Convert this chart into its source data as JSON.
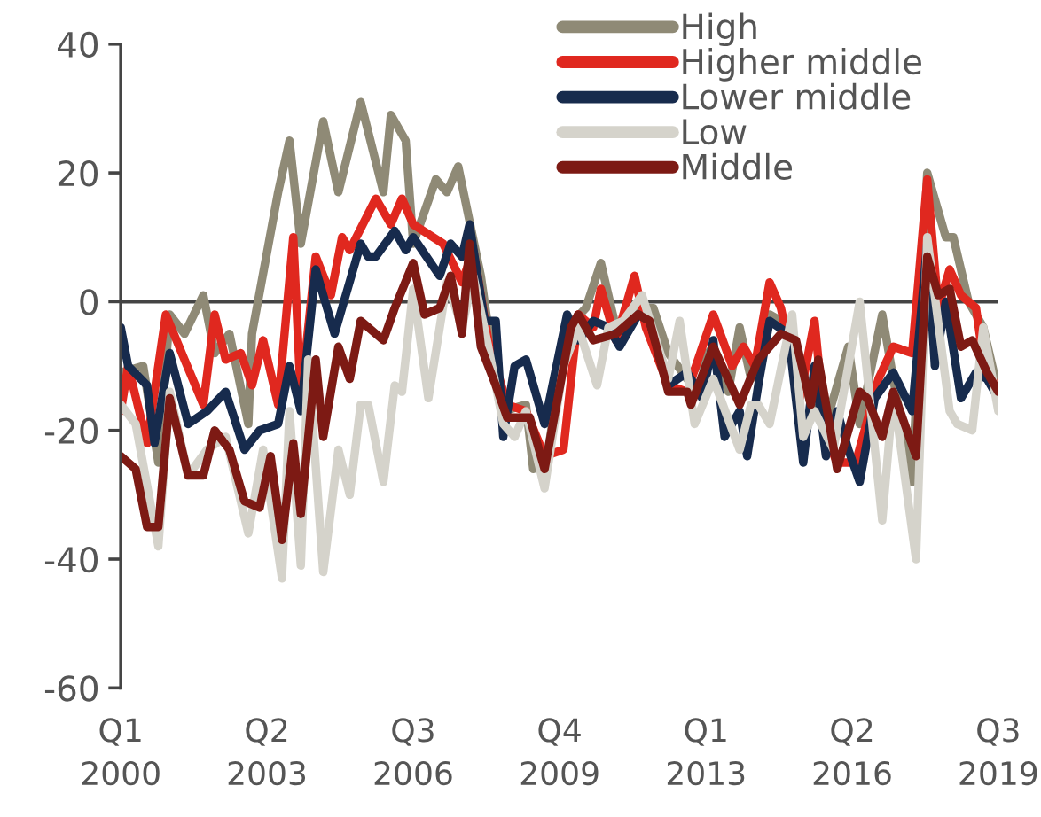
{
  "chart_data": {
    "type": "line",
    "xlim": [
      "2000-01",
      "2019-07"
    ],
    "ylim": [
      -60,
      40
    ],
    "xticks": [
      {
        "value": "2000-01",
        "label": "Q1\n2000"
      },
      {
        "value": "2003-04",
        "label": "Q2\n2003"
      },
      {
        "value": "2006-07",
        "label": "Q3\n2006"
      },
      {
        "value": "2009-10",
        "label": "Q4\n2009"
      },
      {
        "value": "2013-01",
        "label": "Q1\n2013"
      },
      {
        "value": "2016-04",
        "label": "Q2\n2016"
      },
      {
        "value": "2019-07",
        "label": "Q3\n2019"
      }
    ],
    "yticks": [
      -60,
      -40,
      -20,
      0,
      20,
      40
    ],
    "grid": false,
    "ref_lines": [
      {
        "axis": "y",
        "value": 0,
        "color": "#444444"
      }
    ],
    "legend": "top right",
    "marker": "none",
    "line_style": "solid",
    "series": [
      {
        "name": "High",
        "color": "#8f8a76",
        "x": [
          "2000-01",
          "2000-07",
          "2000-11",
          "2001-02",
          "2001-06",
          "2001-11",
          "2002-02",
          "2002-06",
          "2002-11",
          "2002-12",
          "2003-07",
          "2003-10",
          "2004-01",
          "2004-07",
          "2004-11",
          "2005-05",
          "2005-11",
          "2006-01",
          "2006-05",
          "2006-07",
          "2007-01",
          "2007-04",
          "2007-07",
          "2008-01",
          "2008-03",
          "2008-07",
          "2009-01",
          "2009-03",
          "2009-07",
          "2009-12",
          "2010-05",
          "2010-09",
          "2011-01",
          "2011-06",
          "2011-11",
          "2012-03",
          "2012-08",
          "2013-03",
          "2013-07",
          "2013-10",
          "2014-01",
          "2014-06",
          "2014-09",
          "2015-01",
          "2015-05",
          "2015-09",
          "2016-03",
          "2016-06",
          "2016-12",
          "2017-03",
          "2017-08",
          "2017-12",
          "2018-05",
          "2018-07",
          "2018-11",
          "2019-03",
          "2019-07"
        ],
        "values": [
          -11,
          -10,
          -25,
          -2,
          -5,
          1,
          -8,
          -5,
          -19,
          -5,
          17,
          25,
          9,
          28,
          17,
          31,
          17,
          29,
          25,
          9,
          19,
          17,
          21,
          4,
          -4,
          -17,
          -16,
          -26,
          -23,
          -4,
          -1,
          6,
          -4,
          -1,
          -1,
          -8,
          -12,
          -7,
          -14,
          -4,
          -12,
          -2,
          -3,
          -7,
          -16,
          -19,
          -7,
          -19,
          -2,
          -12,
          -28,
          20,
          10,
          10,
          0,
          -4,
          -14
        ]
      },
      {
        "name": "Higher middle",
        "color": "#e0281f",
        "x": [
          "2000-01",
          "2000-03",
          "2000-08",
          "2001-01",
          "2001-06",
          "2001-11",
          "2002-02",
          "2002-05",
          "2002-09",
          "2002-12",
          "2003-03",
          "2003-07",
          "2003-11",
          "2004-01",
          "2004-05",
          "2004-09",
          "2004-12",
          "2005-02",
          "2005-09",
          "2006-01",
          "2006-04",
          "2006-07",
          "2007-03",
          "2007-08",
          "2007-11",
          "2008-03",
          "2008-08",
          "2009-01",
          "2009-06",
          "2009-11",
          "2010-03",
          "2010-07",
          "2010-09",
          "2011-01",
          "2011-06",
          "2011-09",
          "2012-03",
          "2012-08",
          "2013-03",
          "2013-08",
          "2013-11",
          "2014-02",
          "2014-06",
          "2014-09",
          "2015-02",
          "2015-06",
          "2015-09",
          "2015-12",
          "2016-05",
          "2016-11",
          "2017-03",
          "2017-08",
          "2017-12",
          "2018-03",
          "2018-06",
          "2018-09",
          "2019-01",
          "2019-03",
          "2019-07"
        ],
        "values": [
          -17,
          -10,
          -22,
          -2,
          -9,
          -16,
          -2,
          -9,
          -8,
          -13,
          -6,
          -16,
          10,
          -15,
          7,
          1,
          10,
          8,
          16,
          12,
          16,
          12,
          9,
          3,
          8,
          -6,
          -16,
          -17,
          -24,
          -23,
          -2,
          -4,
          2,
          -6,
          4,
          -4,
          -13,
          -14,
          -2,
          -10,
          -7,
          -10,
          3,
          -1,
          -15,
          -3,
          -21,
          -25,
          -25,
          -12,
          -7,
          -8,
          19,
          -1,
          5,
          1,
          -1,
          -9,
          -14
        ]
      },
      {
        "name": "Lower middle",
        "color": "#172b4d",
        "x": [
          "2000-01",
          "2000-03",
          "2000-08",
          "2000-10",
          "2001-02",
          "2001-07",
          "2001-12",
          "2002-05",
          "2002-10",
          "2003-02",
          "2003-07",
          "2003-10",
          "2004-01",
          "2004-05",
          "2004-10",
          "2005-05",
          "2005-07",
          "2005-09",
          "2006-02",
          "2006-05",
          "2006-07",
          "2007-02",
          "2007-05",
          "2007-08",
          "2007-10",
          "2008-02",
          "2008-05",
          "2008-07",
          "2008-10",
          "2009-01",
          "2009-06",
          "2009-12",
          "2010-03",
          "2010-07",
          "2010-11",
          "2011-02",
          "2011-07",
          "2011-10",
          "2012-03",
          "2012-08",
          "2012-12",
          "2013-03",
          "2013-06",
          "2013-10",
          "2013-12",
          "2014-03",
          "2014-06",
          "2014-11",
          "2015-03",
          "2015-06",
          "2015-09",
          "2015-12",
          "2016-03",
          "2016-06",
          "2016-10",
          "2017-03",
          "2017-08",
          "2017-12",
          "2018-02",
          "2018-05",
          "2018-09",
          "2019-01",
          "2019-04",
          "2019-07"
        ],
        "values": [
          -4,
          -10,
          -13,
          -22,
          -8,
          -19,
          -17,
          -14,
          -23,
          -20,
          -19,
          -10,
          -17,
          5,
          -5,
          9,
          7,
          7,
          11,
          8,
          10,
          4,
          9,
          7,
          12,
          -3,
          -3,
          -21,
          -10,
          -9,
          -19,
          -2,
          -6,
          -3,
          -4,
          -7,
          -2,
          -3,
          -13,
          -11,
          -15,
          -6,
          -21,
          -17,
          -24,
          -13,
          -3,
          -5,
          -25,
          -10,
          -24,
          -17,
          -23,
          -28,
          -15,
          -11,
          -17,
          9,
          -10,
          0,
          -15,
          -11,
          -12,
          -15
        ]
      },
      {
        "name": "Low",
        "color": "#d5d3cb",
        "x": [
          "2000-01",
          "2000-05",
          "2000-11",
          "2001-02",
          "2001-07",
          "2001-12",
          "2002-05",
          "2002-11",
          "2003-03",
          "2003-08",
          "2003-10",
          "2004-01",
          "2004-03",
          "2004-07",
          "2004-11",
          "2005-02",
          "2005-05",
          "2005-07",
          "2005-11",
          "2006-02",
          "2006-04",
          "2006-07",
          "2006-11",
          "2007-04",
          "2007-08",
          "2007-11",
          "2008-03",
          "2008-07",
          "2008-10",
          "2009-01",
          "2009-06",
          "2009-11",
          "2010-03",
          "2010-08",
          "2010-11",
          "2011-03",
          "2011-08",
          "2012-03",
          "2012-06",
          "2012-10",
          "2013-03",
          "2013-10",
          "2014-01",
          "2014-03",
          "2014-06",
          "2014-12",
          "2015-03",
          "2015-06",
          "2015-11",
          "2016-03",
          "2016-06",
          "2016-12",
          "2017-03",
          "2017-09",
          "2017-12",
          "2018-06",
          "2018-08",
          "2018-12",
          "2019-03",
          "2019-07"
        ],
        "values": [
          -16,
          -19,
          -38,
          -14,
          -27,
          -23,
          -21,
          -36,
          -23,
          -43,
          -17,
          -41,
          -9,
          -42,
          -23,
          -30,
          -16,
          -16,
          -28,
          -13,
          -14,
          2,
          -15,
          3,
          -4,
          4,
          -7,
          -19,
          -21,
          -17,
          -29,
          -10,
          -4,
          -13,
          -4,
          -3,
          1,
          -12,
          -3,
          -19,
          -12,
          -23,
          -16,
          -16,
          -19,
          -2,
          -21,
          -17,
          -23,
          -10,
          0,
          -34,
          -14,
          -40,
          10,
          -17,
          -19,
          -20,
          -4,
          -17
        ]
      },
      {
        "name": "Middle",
        "color": "#7d1a14",
        "x": [
          "2000-01",
          "2000-05",
          "2000-08",
          "2000-11",
          "2001-02",
          "2001-07",
          "2001-11",
          "2002-02",
          "2002-06",
          "2002-10",
          "2003-02",
          "2003-05",
          "2003-08",
          "2003-11",
          "2004-01",
          "2004-05",
          "2004-07",
          "2004-11",
          "2005-02",
          "2005-05",
          "2005-11",
          "2006-02",
          "2006-07",
          "2006-10",
          "2007-02",
          "2007-05",
          "2007-08",
          "2007-10",
          "2008-01",
          "2008-05",
          "2008-08",
          "2009-02",
          "2009-06",
          "2010-01",
          "2010-03",
          "2010-07",
          "2011-01",
          "2011-07",
          "2011-10",
          "2012-03",
          "2012-08",
          "2012-09",
          "2013-03",
          "2013-10",
          "2014-03",
          "2014-09",
          "2015-01",
          "2015-05",
          "2015-07",
          "2015-12",
          "2016-06",
          "2016-08",
          "2016-12",
          "2017-03",
          "2017-09",
          "2017-12",
          "2018-03",
          "2018-06",
          "2018-09",
          "2018-12",
          "2019-04",
          "2019-07"
        ],
        "values": [
          -24,
          -26,
          -35,
          -35,
          -15,
          -27,
          -27,
          -20,
          -23,
          -31,
          -32,
          -24,
          -37,
          -22,
          -33,
          -9,
          -21,
          -7,
          -12,
          -3,
          -6,
          -1,
          6,
          -2,
          -1,
          4,
          -5,
          9,
          -7,
          -13,
          -18,
          -18,
          -26,
          -4,
          -2,
          -6,
          -5,
          -2,
          -3,
          -14,
          -14,
          -16,
          -7,
          -16,
          -9,
          -5,
          -6,
          -16,
          -9,
          -26,
          -14,
          -15,
          -21,
          -14,
          -24,
          7,
          1,
          2,
          -7,
          -6,
          -11,
          -14
        ]
      }
    ]
  }
}
